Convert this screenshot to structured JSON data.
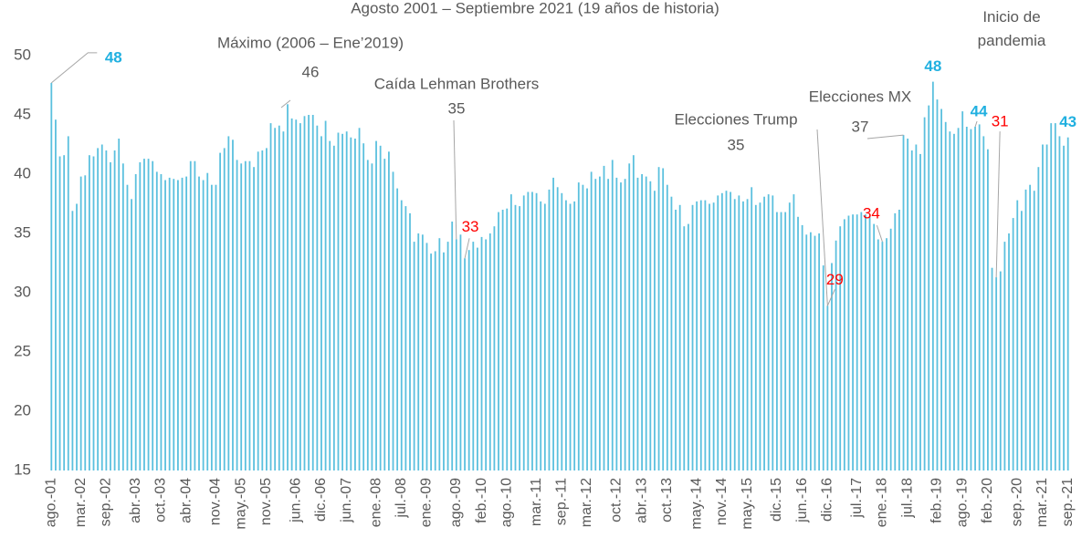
{
  "chart_data": {
    "type": "bar",
    "subtitle": "Agosto 2001 – Septiembre 2021 (19 años de historia)",
    "color": "#5bc0de",
    "ylim": [
      15,
      50
    ],
    "yticks": [
      15,
      20,
      25,
      30,
      35,
      40,
      45,
      50
    ],
    "grid": false,
    "annotations": [
      {
        "text": "Máximo (2006 – Ene’2019)",
        "value": 46
      },
      {
        "text": "Caída Lehman Brothers",
        "value": 35
      },
      {
        "text": "Elecciones Trump",
        "value": 35
      },
      {
        "text": "Elecciones MX",
        "value": 37
      },
      {
        "text": "Inicio de pandemia"
      }
    ],
    "categories": [
      "ago.-01",
      null,
      null,
      null,
      null,
      null,
      null,
      "mar.-02",
      null,
      null,
      null,
      null,
      null,
      "sep.-02",
      null,
      null,
      null,
      null,
      null,
      null,
      "abr.-03",
      null,
      null,
      null,
      null,
      null,
      "oct.-03",
      null,
      null,
      null,
      null,
      null,
      "abr.-04",
      null,
      null,
      null,
      null,
      null,
      null,
      "nov.-04",
      null,
      null,
      null,
      null,
      null,
      "may.-05",
      null,
      null,
      null,
      null,
      null,
      "nov.-05",
      null,
      null,
      null,
      null,
      null,
      null,
      "jun.-06",
      null,
      null,
      null,
      null,
      null,
      "dic.-06",
      null,
      null,
      null,
      null,
      null,
      "jun.-07",
      null,
      null,
      null,
      null,
      null,
      null,
      "ene.-08",
      null,
      null,
      null,
      null,
      null,
      "jul.-08",
      null,
      null,
      null,
      null,
      null,
      "ene.-09",
      null,
      null,
      null,
      null,
      null,
      null,
      "ago.-09",
      null,
      null,
      null,
      null,
      null,
      "feb.-10",
      null,
      null,
      null,
      null,
      null,
      "ago.-10",
      null,
      null,
      null,
      null,
      null,
      null,
      "mar.-11",
      null,
      null,
      null,
      null,
      null,
      "sep.-11",
      null,
      null,
      null,
      null,
      null,
      "mar.-12",
      null,
      null,
      null,
      null,
      null,
      null,
      "oct.-12",
      null,
      null,
      null,
      null,
      null,
      "abr.-13",
      null,
      null,
      null,
      null,
      null,
      "oct.-13",
      null,
      null,
      null,
      null,
      null,
      null,
      "may.-14",
      null,
      null,
      null,
      null,
      null,
      "nov.-14",
      null,
      null,
      null,
      null,
      null,
      "may.-15",
      null,
      null,
      null,
      null,
      null,
      null,
      "dic.-15",
      null,
      null,
      null,
      null,
      null,
      "jun.-16",
      null,
      null,
      null,
      null,
      null,
      "dic.-16",
      null,
      null,
      null,
      null,
      null,
      null,
      "jul.-17",
      null,
      null,
      null,
      null,
      null,
      "ene.-18",
      null,
      null,
      null,
      null,
      null,
      "jul.-18",
      null,
      null,
      null,
      null,
      null,
      null,
      "feb.-19",
      null,
      null,
      null,
      null,
      null,
      "ago.-19",
      null,
      null,
      null,
      null,
      null,
      "feb.-20",
      null,
      null,
      null,
      null,
      null,
      null,
      "sep.-20",
      null,
      null,
      null,
      null,
      null,
      "mar.-21",
      null,
      null,
      null,
      null,
      null,
      "sep.-21"
    ],
    "values": [
      47.7,
      44.6,
      41.5,
      41.6,
      43.2,
      36.9,
      37.5,
      39.8,
      39.9,
      41.6,
      41.5,
      42.2,
      42.5,
      42.0,
      41.0,
      42.0,
      43.0,
      40.9,
      39.1,
      37.9,
      40.0,
      41.0,
      41.3,
      41.3,
      41.1,
      40.2,
      40.0,
      39.5,
      39.7,
      39.6,
      39.5,
      39.7,
      39.8,
      41.1,
      41.1,
      39.8,
      39.5,
      40.1,
      39.1,
      39.1,
      41.8,
      42.2,
      43.2,
      42.9,
      41.2,
      40.9,
      41.1,
      41.1,
      40.6,
      41.9,
      42.0,
      42.2,
      44.3,
      43.9,
      44.1,
      43.6,
      45.9,
      44.7,
      44.6,
      44.3,
      44.9,
      45.0,
      45.0,
      44.1,
      43.2,
      44.5,
      42.8,
      42.4,
      43.5,
      43.4,
      43.6,
      43.1,
      43.0,
      43.9,
      42.6,
      41.2,
      40.9,
      42.8,
      42.4,
      41.3,
      41.9,
      40.2,
      38.8,
      37.8,
      37.3,
      36.7,
      34.3,
      35.0,
      34.9,
      34.2,
      33.3,
      33.5,
      34.6,
      33.4,
      34.3,
      36.0,
      34.5,
      34.9,
      32.9,
      33.6,
      34.3,
      33.8,
      34.7,
      34.5,
      35.0,
      35.6,
      36.8,
      37.0,
      37.1,
      38.3,
      37.4,
      37.3,
      38.2,
      38.5,
      38.5,
      38.4,
      37.7,
      37.5,
      38.7,
      39.7,
      38.9,
      38.4,
      37.8,
      37.5,
      37.7,
      39.3,
      39.1,
      38.8,
      40.2,
      39.6,
      39.8,
      40.7,
      39.6,
      41.2,
      39.7,
      39.3,
      39.6,
      40.9,
      41.6,
      39.7,
      40.0,
      39.8,
      39.4,
      38.6,
      40.6,
      40.5,
      39.1,
      38.1,
      37.0,
      37.4,
      35.6,
      35.8,
      37.4,
      37.7,
      37.8,
      37.8,
      37.5,
      37.6,
      38.2,
      38.4,
      38.6,
      38.5,
      37.9,
      38.2,
      37.7,
      37.9,
      38.9,
      37.4,
      37.6,
      38.1,
      38.3,
      38.2,
      36.8,
      36.8,
      36.8,
      37.6,
      38.3,
      36.4,
      35.7,
      34.9,
      35.1,
      34.8,
      35.0,
      32.3,
      28.9,
      32.5,
      34.4,
      35.6,
      36.2,
      36.5,
      36.6,
      36.6,
      36.8,
      36.6,
      36.4,
      35.8,
      34.5,
      34.3,
      34.6,
      35.4,
      36.7,
      37.0,
      43.3,
      43.0,
      42.0,
      42.5,
      41.7,
      44.8,
      45.8,
      47.8,
      46.3,
      45.5,
      44.4,
      43.6,
      43.4,
      43.9,
      45.3,
      44.0,
      43.8,
      44.0,
      44.2,
      43.2,
      42.1,
      32.1,
      31.3,
      31.8,
      34.3,
      35.0,
      36.3,
      37.8,
      36.9,
      38.7,
      39.1,
      38.6,
      40.6,
      42.5,
      42.5,
      44.3,
      44.3,
      43.2,
      42.4,
      43.1
    ],
    "value_labels": {
      "0": "48",
      "98": "33",
      "184": "29",
      "197": "34",
      "209": "48",
      "219": "44",
      "224": "31",
      "241": "43"
    }
  }
}
